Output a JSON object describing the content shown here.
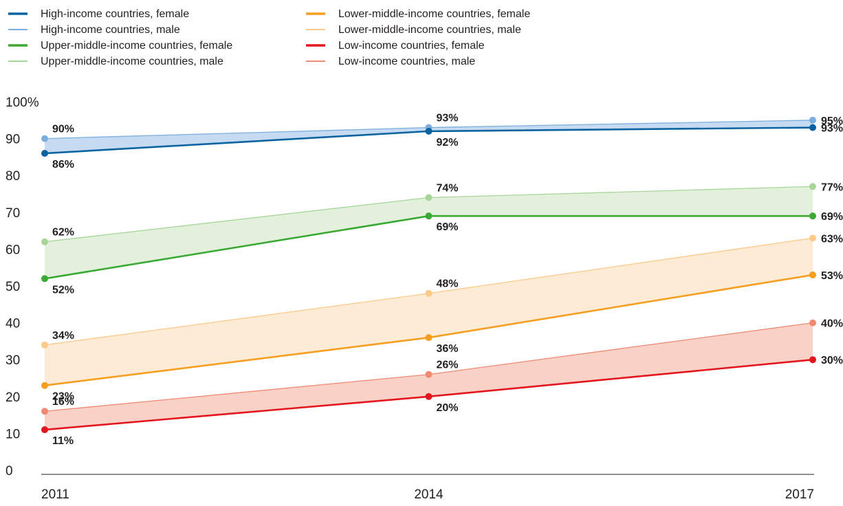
{
  "chart_data": {
    "type": "line",
    "categories": [
      "2011",
      "2014",
      "2017"
    ],
    "x": [
      2011,
      2014,
      2017
    ],
    "ylim": [
      0,
      100
    ],
    "yticks": [
      0,
      10,
      20,
      30,
      40,
      50,
      60,
      70,
      80,
      90,
      100
    ],
    "ytick_labels": [
      "0",
      "10",
      "20",
      "30",
      "40",
      "50",
      "60",
      "70",
      "80",
      "90",
      "100%"
    ],
    "title": "",
    "xlabel": "",
    "ylabel": "",
    "grid": false,
    "legend_placement": "top-left",
    "series": [
      {
        "name": "High-income countries, female",
        "values": [
          86,
          92,
          93
        ],
        "labels": [
          "86%",
          "92%",
          "93%"
        ],
        "color": "#0b64a0"
      },
      {
        "name": "High-income countries, male",
        "values": [
          90,
          93,
          95
        ],
        "labels": [
          "90%",
          "93%",
          "95%"
        ],
        "color": "#7aaede"
      },
      {
        "name": "Upper-middle-income countries, female",
        "values": [
          52,
          69,
          69
        ],
        "labels": [
          "52%",
          "69%",
          "69%"
        ],
        "color": "#3aaa35"
      },
      {
        "name": "Upper-middle-income countries, male",
        "values": [
          62,
          74,
          77
        ],
        "labels": [
          "62%",
          "74%",
          "77%"
        ],
        "color": "#a8d59a"
      },
      {
        "name": "Lower-middle-income countries, female",
        "values": [
          23,
          36,
          53
        ],
        "labels": [
          "23%",
          "36%",
          "53%"
        ],
        "color": "#f59e20"
      },
      {
        "name": "Lower-middle-income countries, male",
        "values": [
          34,
          48,
          63
        ],
        "labels": [
          "34%",
          "48%",
          "63%"
        ],
        "color": "#fcc98a"
      },
      {
        "name": "Low-income countries, female",
        "values": [
          11,
          20,
          30
        ],
        "labels": [
          "11%",
          "20%",
          "30%"
        ],
        "color": "#e3161e"
      },
      {
        "name": "Low-income countries, male",
        "values": [
          16,
          26,
          40
        ],
        "labels": [
          "16%",
          "26%",
          "40%"
        ],
        "color": "#f08a73"
      }
    ],
    "bands": [
      {
        "female_series": "High-income countries, female",
        "male_series": "High-income countries, male",
        "fill": "#c6dbf2"
      },
      {
        "female_series": "Upper-middle-income countries, female",
        "male_series": "Upper-middle-income countries, male",
        "fill": "#e3f1dc"
      },
      {
        "female_series": "Lower-middle-income countries, female",
        "male_series": "Lower-middle-income countries, male",
        "fill": "#fdebd6"
      },
      {
        "female_series": "Low-income countries, female",
        "male_series": "Low-income countries, male",
        "fill": "#f9d1c6"
      }
    ]
  }
}
